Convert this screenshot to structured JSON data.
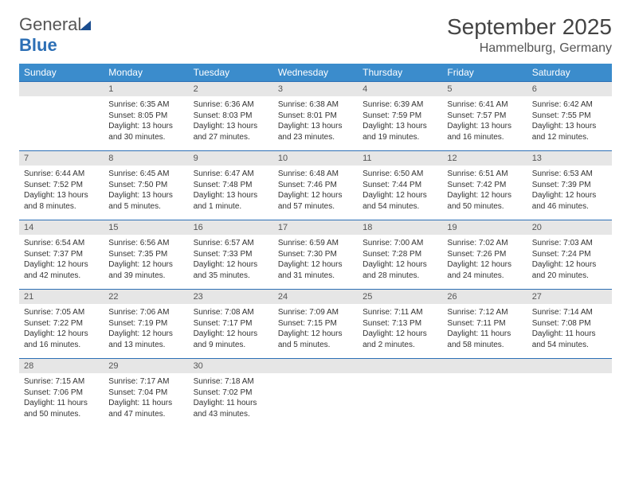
{
  "brand": {
    "part1": "General",
    "part2": "Blue"
  },
  "title": "September 2025",
  "location": "Hammelburg, Germany",
  "colors": {
    "header_bg": "#3b8ccc",
    "header_text": "#ffffff",
    "daynum_bg": "#e6e6e6",
    "rule": "#2c6fb5",
    "body_text": "#333333"
  },
  "fonts": {
    "title_size": 28,
    "location_size": 16,
    "header_size": 12,
    "daynum_size": 11,
    "cell_size": 10
  },
  "weekdays": [
    "Sunday",
    "Monday",
    "Tuesday",
    "Wednesday",
    "Thursday",
    "Friday",
    "Saturday"
  ],
  "weeks": [
    {
      "nums": [
        "",
        "1",
        "2",
        "3",
        "4",
        "5",
        "6"
      ],
      "cells": [
        {
          "empty": true
        },
        {
          "sunrise": "Sunrise: 6:35 AM",
          "sunset": "Sunset: 8:05 PM",
          "day1": "Daylight: 13 hours",
          "day2": "and 30 minutes."
        },
        {
          "sunrise": "Sunrise: 6:36 AM",
          "sunset": "Sunset: 8:03 PM",
          "day1": "Daylight: 13 hours",
          "day2": "and 27 minutes."
        },
        {
          "sunrise": "Sunrise: 6:38 AM",
          "sunset": "Sunset: 8:01 PM",
          "day1": "Daylight: 13 hours",
          "day2": "and 23 minutes."
        },
        {
          "sunrise": "Sunrise: 6:39 AM",
          "sunset": "Sunset: 7:59 PM",
          "day1": "Daylight: 13 hours",
          "day2": "and 19 minutes."
        },
        {
          "sunrise": "Sunrise: 6:41 AM",
          "sunset": "Sunset: 7:57 PM",
          "day1": "Daylight: 13 hours",
          "day2": "and 16 minutes."
        },
        {
          "sunrise": "Sunrise: 6:42 AM",
          "sunset": "Sunset: 7:55 PM",
          "day1": "Daylight: 13 hours",
          "day2": "and 12 minutes."
        }
      ]
    },
    {
      "nums": [
        "7",
        "8",
        "9",
        "10",
        "11",
        "12",
        "13"
      ],
      "cells": [
        {
          "sunrise": "Sunrise: 6:44 AM",
          "sunset": "Sunset: 7:52 PM",
          "day1": "Daylight: 13 hours",
          "day2": "and 8 minutes."
        },
        {
          "sunrise": "Sunrise: 6:45 AM",
          "sunset": "Sunset: 7:50 PM",
          "day1": "Daylight: 13 hours",
          "day2": "and 5 minutes."
        },
        {
          "sunrise": "Sunrise: 6:47 AM",
          "sunset": "Sunset: 7:48 PM",
          "day1": "Daylight: 13 hours",
          "day2": "and 1 minute."
        },
        {
          "sunrise": "Sunrise: 6:48 AM",
          "sunset": "Sunset: 7:46 PM",
          "day1": "Daylight: 12 hours",
          "day2": "and 57 minutes."
        },
        {
          "sunrise": "Sunrise: 6:50 AM",
          "sunset": "Sunset: 7:44 PM",
          "day1": "Daylight: 12 hours",
          "day2": "and 54 minutes."
        },
        {
          "sunrise": "Sunrise: 6:51 AM",
          "sunset": "Sunset: 7:42 PM",
          "day1": "Daylight: 12 hours",
          "day2": "and 50 minutes."
        },
        {
          "sunrise": "Sunrise: 6:53 AM",
          "sunset": "Sunset: 7:39 PM",
          "day1": "Daylight: 12 hours",
          "day2": "and 46 minutes."
        }
      ]
    },
    {
      "nums": [
        "14",
        "15",
        "16",
        "17",
        "18",
        "19",
        "20"
      ],
      "cells": [
        {
          "sunrise": "Sunrise: 6:54 AM",
          "sunset": "Sunset: 7:37 PM",
          "day1": "Daylight: 12 hours",
          "day2": "and 42 minutes."
        },
        {
          "sunrise": "Sunrise: 6:56 AM",
          "sunset": "Sunset: 7:35 PM",
          "day1": "Daylight: 12 hours",
          "day2": "and 39 minutes."
        },
        {
          "sunrise": "Sunrise: 6:57 AM",
          "sunset": "Sunset: 7:33 PM",
          "day1": "Daylight: 12 hours",
          "day2": "and 35 minutes."
        },
        {
          "sunrise": "Sunrise: 6:59 AM",
          "sunset": "Sunset: 7:30 PM",
          "day1": "Daylight: 12 hours",
          "day2": "and 31 minutes."
        },
        {
          "sunrise": "Sunrise: 7:00 AM",
          "sunset": "Sunset: 7:28 PM",
          "day1": "Daylight: 12 hours",
          "day2": "and 28 minutes."
        },
        {
          "sunrise": "Sunrise: 7:02 AM",
          "sunset": "Sunset: 7:26 PM",
          "day1": "Daylight: 12 hours",
          "day2": "and 24 minutes."
        },
        {
          "sunrise": "Sunrise: 7:03 AM",
          "sunset": "Sunset: 7:24 PM",
          "day1": "Daylight: 12 hours",
          "day2": "and 20 minutes."
        }
      ]
    },
    {
      "nums": [
        "21",
        "22",
        "23",
        "24",
        "25",
        "26",
        "27"
      ],
      "cells": [
        {
          "sunrise": "Sunrise: 7:05 AM",
          "sunset": "Sunset: 7:22 PM",
          "day1": "Daylight: 12 hours",
          "day2": "and 16 minutes."
        },
        {
          "sunrise": "Sunrise: 7:06 AM",
          "sunset": "Sunset: 7:19 PM",
          "day1": "Daylight: 12 hours",
          "day2": "and 13 minutes."
        },
        {
          "sunrise": "Sunrise: 7:08 AM",
          "sunset": "Sunset: 7:17 PM",
          "day1": "Daylight: 12 hours",
          "day2": "and 9 minutes."
        },
        {
          "sunrise": "Sunrise: 7:09 AM",
          "sunset": "Sunset: 7:15 PM",
          "day1": "Daylight: 12 hours",
          "day2": "and 5 minutes."
        },
        {
          "sunrise": "Sunrise: 7:11 AM",
          "sunset": "Sunset: 7:13 PM",
          "day1": "Daylight: 12 hours",
          "day2": "and 2 minutes."
        },
        {
          "sunrise": "Sunrise: 7:12 AM",
          "sunset": "Sunset: 7:11 PM",
          "day1": "Daylight: 11 hours",
          "day2": "and 58 minutes."
        },
        {
          "sunrise": "Sunrise: 7:14 AM",
          "sunset": "Sunset: 7:08 PM",
          "day1": "Daylight: 11 hours",
          "day2": "and 54 minutes."
        }
      ]
    },
    {
      "nums": [
        "28",
        "29",
        "30",
        "",
        "",
        "",
        ""
      ],
      "cells": [
        {
          "sunrise": "Sunrise: 7:15 AM",
          "sunset": "Sunset: 7:06 PM",
          "day1": "Daylight: 11 hours",
          "day2": "and 50 minutes."
        },
        {
          "sunrise": "Sunrise: 7:17 AM",
          "sunset": "Sunset: 7:04 PM",
          "day1": "Daylight: 11 hours",
          "day2": "and 47 minutes."
        },
        {
          "sunrise": "Sunrise: 7:18 AM",
          "sunset": "Sunset: 7:02 PM",
          "day1": "Daylight: 11 hours",
          "day2": "and 43 minutes."
        },
        {
          "empty": true
        },
        {
          "empty": true
        },
        {
          "empty": true
        },
        {
          "empty": true
        }
      ]
    }
  ]
}
